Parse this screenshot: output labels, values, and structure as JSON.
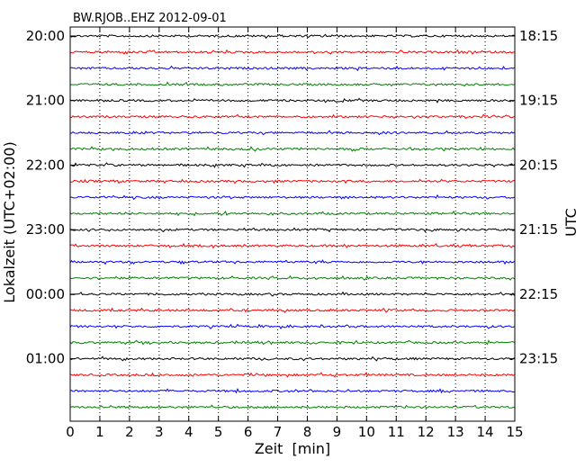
{
  "chart_data": {
    "type": "line",
    "title": "BW.RJOB..EHZ 2012-09-01",
    "xlabel": "Zeit  [min]",
    "ylabel_left": "Lokalzeit (UTC+02:00)",
    "ylabel_right": "UTC",
    "xlim": [
      0,
      15
    ],
    "x_ticks": [
      "0",
      "1",
      "2",
      "3",
      "4",
      "5",
      "6",
      "7",
      "8",
      "9",
      "10",
      "11",
      "12",
      "13",
      "14",
      "15"
    ],
    "left_ticks": [
      "20:00",
      "21:00",
      "22:00",
      "23:00",
      "00:00",
      "01:00"
    ],
    "right_ticks": [
      "18:15",
      "19:15",
      "20:15",
      "21:15",
      "22:15",
      "23:15"
    ],
    "grid": "vertical-dotted",
    "trace_colors": [
      "#000000",
      "#ff0000",
      "#0000ff",
      "#008000"
    ],
    "traces_count": 24
  }
}
